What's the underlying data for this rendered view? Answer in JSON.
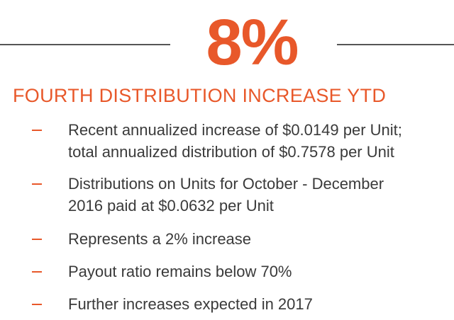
{
  "headline": "8%",
  "heading": "FOURTH DISTRIBUTION INCREASE YTD",
  "items": [
    [
      "Recent annualized increase of $0.0149 per Unit;",
      "total annualized distribution of $0.7578 per Unit"
    ],
    [
      "Distributions on Units for October - December",
      "2016 paid at $0.0632 per Unit"
    ],
    [
      "Represents a 2% increase"
    ],
    [
      "Payout ratio remains below 70%"
    ],
    [
      "Further increases expected in 2017"
    ]
  ]
}
